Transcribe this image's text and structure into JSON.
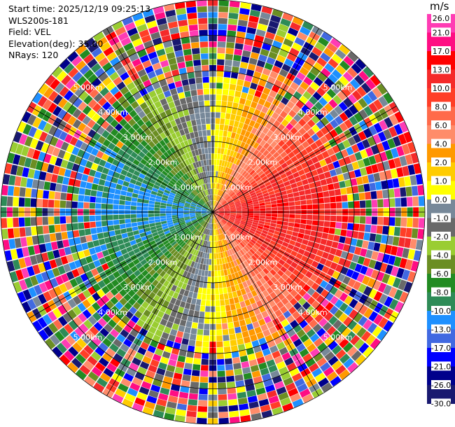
{
  "info": {
    "start_time": "Start time: 2025/12/19 09:25:13",
    "instrument": "WLS200s-181",
    "field": "Field: VEL",
    "elevation": "Elevation(deg): 35.00",
    "nrays": "NRays: 120"
  },
  "colorbar": {
    "unit": "m/s",
    "ticks": [
      "26.0",
      "21.0",
      "17.0",
      "13.0",
      "10.0",
      "8.0",
      "6.0",
      "4.0",
      "2.0",
      "1.0",
      "0.0",
      "-1.0",
      "-2.0",
      "-4.0",
      "-6.0",
      "-8.0",
      "-10.0",
      "-13.0",
      "-17.0",
      "-21.0",
      "-26.0",
      "-30.0"
    ],
    "bins": [
      {
        "color": "#ff3cb4"
      },
      {
        "color": "#ff0d83"
      },
      {
        "color": "#ff0000"
      },
      {
        "color": "#f52a2a"
      },
      {
        "color": "#ff3e27"
      },
      {
        "color": "#ff6a4a"
      },
      {
        "color": "#ff8c6a"
      },
      {
        "color": "#ff9900"
      },
      {
        "color": "#ffcc00"
      },
      {
        "color": "#ffff00"
      },
      {
        "color": "#778899"
      },
      {
        "color": "#696969"
      },
      {
        "color": "#9acd32"
      },
      {
        "color": "#6b8e23"
      },
      {
        "color": "#228b22"
      },
      {
        "color": "#2e8b57"
      },
      {
        "color": "#1e90ff"
      },
      {
        "color": "#4169e1"
      },
      {
        "color": "#0000ff"
      },
      {
        "color": "#00008b"
      },
      {
        "color": "#191970"
      }
    ]
  },
  "chart_data": {
    "type": "ppi",
    "title": "",
    "field": "VEL",
    "units": "m/s",
    "nrays": 120,
    "elevation_deg": 35.0,
    "max_range_km": 6.0,
    "range_rings_km": [
      1,
      2,
      3,
      4,
      5,
      6
    ],
    "ring_labels": [
      "1.00km",
      "2.00km",
      "3.00km",
      "4.00km",
      "5.00km"
    ],
    "vmin": -30.0,
    "vmax": 26.0,
    "wind": {
      "speed_ms": 17.0,
      "toward_azimuth_deg": 92
    },
    "valid_range_km": 3.5
  }
}
